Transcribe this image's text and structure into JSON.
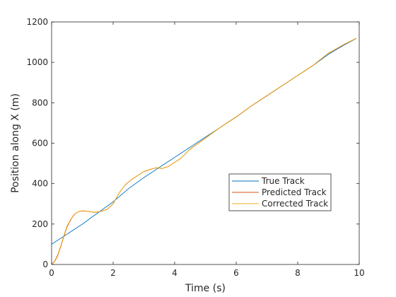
{
  "chart_data": {
    "type": "line",
    "title": "",
    "xlabel": "Time (s)",
    "ylabel": "Position along X (m)",
    "xlim": [
      0,
      10
    ],
    "ylim": [
      0,
      1200
    ],
    "xticks": [
      0,
      2,
      4,
      6,
      8,
      10
    ],
    "yticks": [
      0,
      200,
      400,
      600,
      800,
      1000,
      1200
    ],
    "xtick_labels": [
      "0",
      "2",
      "4",
      "6",
      "8",
      "10"
    ],
    "ytick_labels": [
      "0",
      "200",
      "400",
      "600",
      "800",
      "1000",
      "1200"
    ],
    "grid": false,
    "legend_position": "center-right",
    "series": [
      {
        "name": "True Track",
        "color": "#0072BD",
        "x": [
          0,
          0.5,
          1,
          1.5,
          2,
          2.5,
          3,
          3.5,
          4,
          4.5,
          5,
          5.5,
          6,
          6.5,
          7,
          7.5,
          8,
          8.5,
          9,
          9.5,
          9.9
        ],
        "y": [
          100,
          150,
          200,
          255,
          310,
          375,
          430,
          480,
          530,
          580,
          630,
          680,
          730,
          785,
          835,
          885,
          935,
          985,
          1040,
          1085,
          1118
        ]
      },
      {
        "name": "Predicted Track",
        "color": "#D95319",
        "x": [
          0,
          0.1,
          0.2,
          0.3,
          0.4,
          0.5,
          0.6,
          0.7,
          0.8,
          0.9,
          1,
          1.2,
          1.4,
          1.6,
          1.8,
          2,
          2.2,
          2.4,
          2.6,
          2.8,
          3,
          3.2,
          3.4,
          3.6,
          3.8,
          4,
          4.2,
          4.5,
          5,
          5.5,
          6,
          6.5,
          7,
          7.5,
          8,
          8.5,
          9,
          9.5,
          9.9
        ],
        "y": [
          0,
          15,
          45,
          90,
          140,
          185,
          215,
          240,
          255,
          262,
          265,
          262,
          258,
          262,
          272,
          300,
          355,
          395,
          420,
          440,
          460,
          470,
          478,
          475,
          485,
          505,
          525,
          570,
          625,
          680,
          730,
          785,
          835,
          885,
          935,
          985,
          1045,
          1088,
          1118
        ]
      },
      {
        "name": "Corrected Track",
        "color": "#EDB120",
        "x": [
          0,
          0.1,
          0.2,
          0.3,
          0.4,
          0.5,
          0.6,
          0.7,
          0.8,
          0.9,
          1,
          1.2,
          1.4,
          1.6,
          1.8,
          2,
          2.2,
          2.4,
          2.6,
          2.8,
          3,
          3.2,
          3.4,
          3.6,
          3.8,
          4,
          4.2,
          4.5,
          5,
          5.5,
          6,
          6.5,
          7,
          7.5,
          8,
          8.5,
          9,
          9.5,
          9.9
        ],
        "y": [
          0,
          18,
          50,
          95,
          145,
          190,
          218,
          242,
          256,
          263,
          266,
          263,
          259,
          263,
          273,
          302,
          356,
          396,
          421,
          441,
          461,
          471,
          479,
          476,
          486,
          506,
          526,
          571,
          626,
          681,
          731,
          786,
          836,
          886,
          936,
          986,
          1046,
          1089,
          1119
        ]
      }
    ]
  }
}
